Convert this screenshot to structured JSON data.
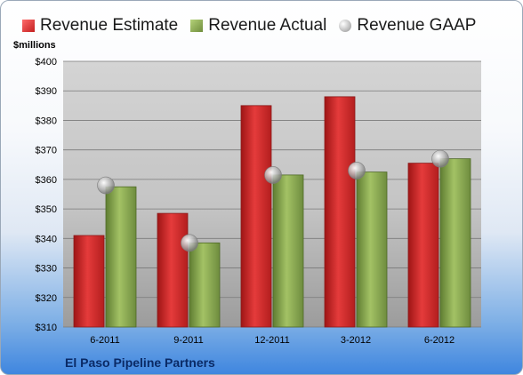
{
  "chart_data": {
    "type": "bar",
    "title": "",
    "xlabel": "",
    "ylabel": "$millions",
    "categories": [
      "6-2011",
      "9-2011",
      "12-2011",
      "3-2012",
      "6-2012"
    ],
    "series": [
      {
        "name": "Revenue Estimate",
        "kind": "bar",
        "color": "#d42a2a",
        "values": [
          341,
          348.5,
          385,
          388,
          365.5
        ]
      },
      {
        "name": "Revenue Actual",
        "kind": "bar",
        "color": "#8fae55",
        "values": [
          357.5,
          338.5,
          361.5,
          362.5,
          367
        ]
      },
      {
        "name": "Revenue GAAP",
        "kind": "marker",
        "color": "#c8c8c8",
        "values": [
          358,
          338.5,
          361.5,
          363,
          367
        ]
      }
    ],
    "ylim": [
      310,
      400
    ],
    "yticks": [
      310,
      320,
      330,
      340,
      350,
      360,
      370,
      380,
      390,
      400
    ],
    "ytick_labels": [
      "$310",
      "$320",
      "$330",
      "$340",
      "$350",
      "$360",
      "$370",
      "$380",
      "$390",
      "$400"
    ],
    "grid": true,
    "legend": "top"
  },
  "legend": {
    "estimate": "Revenue Estimate",
    "actual": "Revenue Actual",
    "gaap": "Revenue GAAP"
  },
  "units_label": "$millions",
  "company_name": "El Paso Pipeline Partners"
}
